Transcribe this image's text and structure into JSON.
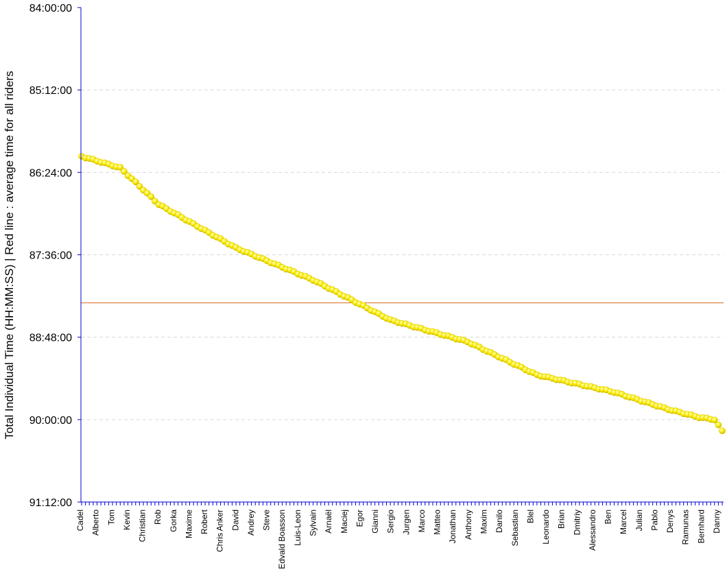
{
  "chart_data": {
    "type": "scatter",
    "ylabel": "Total Individual Time (HH:MM:SS) | Red line : average time for all riders",
    "y_axis": {
      "reversed": true,
      "range_seconds": [
        302400,
        328320
      ],
      "tick_labels": [
        "84:00:00",
        "85:12:00",
        "86:24:00",
        "87:36:00",
        "88:48:00",
        "90:00:00",
        "91:12:00"
      ]
    },
    "x_tick_labels": [
      "Cadel",
      "Alberto",
      "Tom",
      "Kevin",
      "Christian",
      "Rob",
      "Gorka",
      "Maxime",
      "Robert",
      "Chris Anker",
      "David",
      "Andrey",
      "Steve",
      "Edvald Boasson",
      "Luis-Leon",
      "Sylvain",
      "Arnaël",
      "Maciej",
      "Egor",
      "Gianni",
      "Sergio",
      "Jurgen",
      "Marco",
      "Matteo",
      "Jonathan",
      "Anthony",
      "Maxim",
      "Danilo",
      "Sebastian",
      "Blel",
      "Leonardo",
      "Brian",
      "Dmitriy",
      "Alessandro",
      "Ben",
      "Marcel",
      "Julian",
      "Pablo",
      "Denys",
      "Ramunas",
      "Bernhard",
      "Danny"
    ],
    "rider_count": 167,
    "average_time": "88:18:00",
    "grid": "dashed horizontal",
    "colors": {
      "points": "#ffee00",
      "average_line": "#d2691e",
      "axis": "#0000cc"
    },
    "curve_times": [
      [
        0,
        "86:10:00"
      ],
      [
        10,
        "86:20:00"
      ],
      [
        20,
        "86:52:00"
      ],
      [
        40,
        "87:30:00"
      ],
      [
        60,
        "87:58:00"
      ],
      [
        80,
        "88:33:00"
      ],
      [
        100,
        "88:52:00"
      ],
      [
        118,
        "89:21:00"
      ],
      [
        138,
        "89:36:00"
      ],
      [
        152,
        "89:51:00"
      ],
      [
        160,
        "89:58:00"
      ],
      [
        164,
        "90:00:00"
      ],
      [
        166,
        "90:10:00"
      ]
    ]
  }
}
